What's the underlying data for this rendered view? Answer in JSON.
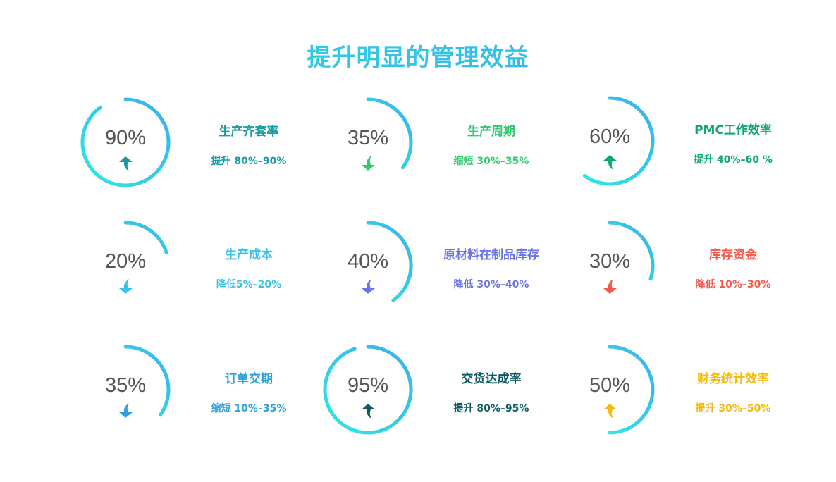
{
  "title": "提升明显的管理效益",
  "colors": {
    "ring_start": "#2ee8e4",
    "ring_end": "#3aaeee",
    "percent_text": "#555555"
  },
  "metrics": [
    {
      "percent_label": "90%",
      "percent": 90,
      "label": "生产齐套率",
      "range": "提升 80%–90%",
      "direction": "up",
      "color": "#1a9ba0"
    },
    {
      "percent_label": "35%",
      "percent": 35,
      "label": "生产周期",
      "range": "缩短 30%–35%",
      "direction": "down",
      "color": "#2ccb6c"
    },
    {
      "percent_label": "60%",
      "percent": 60,
      "label": "PMC工作效率",
      "range": "提升 40%–60 %",
      "direction": "up",
      "color": "#0ba772"
    },
    {
      "percent_label": "20%",
      "percent": 20,
      "label": "生产成本",
      "range": "降低5%–20%",
      "direction": "down",
      "color": "#38c2ea"
    },
    {
      "percent_label": "40%",
      "percent": 40,
      "label": "原材料在制品库存",
      "range": "降低 30%–40%",
      "direction": "down",
      "color": "#6b74e4"
    },
    {
      "percent_label": "30%",
      "percent": 30,
      "label": "库存资金",
      "range": "降低 10%–30%",
      "direction": "down",
      "color": "#f5574b"
    },
    {
      "percent_label": "35%",
      "percent": 35,
      "label": "订单交期",
      "range": "缩短 10%–35%",
      "direction": "down",
      "color": "#2ba0da"
    },
    {
      "percent_label": "95%",
      "percent": 95,
      "label": "交货达成率",
      "range": "提升 80%–95%",
      "direction": "up",
      "color": "#0d5b60"
    },
    {
      "percent_label": "50%",
      "percent": 50,
      "label": "财务统计效率",
      "range": "提升 30%–50%",
      "direction": "up",
      "color": "#f6b90a"
    }
  ]
}
